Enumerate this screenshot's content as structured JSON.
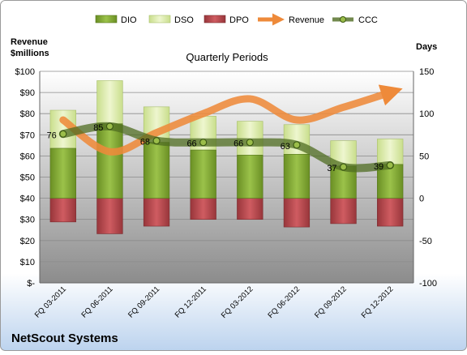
{
  "chart_data": {
    "type": "bar",
    "title": "Quarterly Periods",
    "company": "NetScout Systems",
    "left_axis_label": [
      "Revenue",
      "$millions"
    ],
    "right_axis_label": "Days",
    "categories": [
      "FQ 03-2011",
      "FQ 06-2011",
      "FQ 09-2011",
      "FQ 12-2011",
      "FQ 03-2012",
      "FQ 06-2012",
      "FQ 09-2012",
      "FQ 12-2012"
    ],
    "left_ticks": [
      "$-",
      "$10",
      "$20",
      "$30",
      "$40",
      "$50",
      "$60",
      "$70",
      "$80",
      "$90",
      "$100"
    ],
    "left_range": [
      0,
      100
    ],
    "right_ticks": [
      "-100",
      "-50",
      "0",
      "50",
      "100",
      "150"
    ],
    "right_range": [
      -100,
      150
    ],
    "legend_position": "top",
    "series": [
      {
        "name": "DIO",
        "axis": "days",
        "values": [
          59,
          88,
          66,
          57,
          51,
          52,
          38,
          40
        ]
      },
      {
        "name": "DSO",
        "axis": "days",
        "values": [
          45,
          51,
          42,
          40,
          40,
          35,
          30,
          30
        ]
      },
      {
        "name": "DPO",
        "axis": "days",
        "values": [
          -28,
          -42,
          -33,
          -25,
          -25,
          -34,
          -30,
          -33
        ]
      },
      {
        "name": "Revenue",
        "axis": "revenue",
        "values": [
          77,
          62,
          71,
          80,
          87,
          77,
          83,
          90
        ]
      },
      {
        "name": "CCC",
        "axis": "days",
        "values": [
          76,
          85,
          68,
          66,
          66,
          63,
          37,
          39
        ]
      }
    ],
    "colors": {
      "DIO": "#7fa535",
      "DSO": "#d9eaa6",
      "DPO": "#b5474c",
      "Revenue": "#ee8a3a",
      "CCC": "#4f6c22",
      "background": "#ffffff"
    }
  }
}
